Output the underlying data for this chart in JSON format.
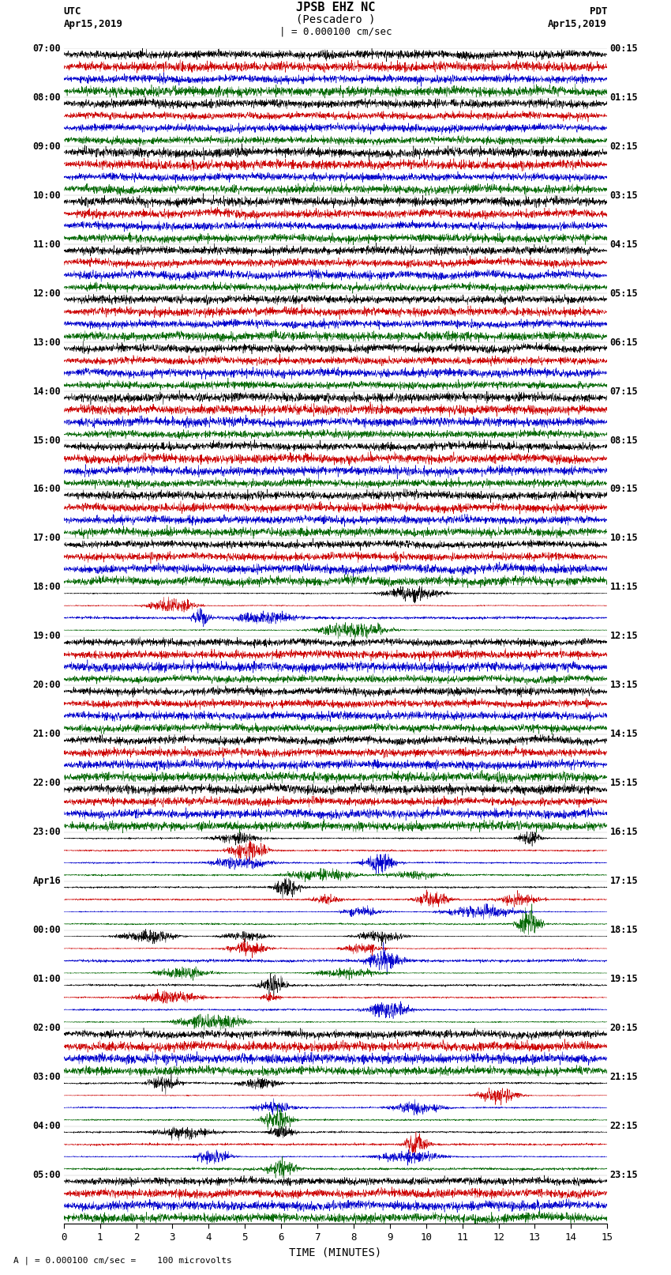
{
  "title_line1": "JPSB EHZ NC",
  "title_line2": "(Pescadero )",
  "scale_label": "| = 0.000100 cm/sec",
  "footer_label": "A | = 0.000100 cm/sec =    100 microvolts",
  "utc_label": "UTC",
  "utc_date": "Apr15,2019",
  "pdt_label": "PDT",
  "pdt_date": "Apr15,2019",
  "xlabel": "TIME (MINUTES)",
  "xlim": [
    0,
    15
  ],
  "xticks": [
    0,
    1,
    2,
    3,
    4,
    5,
    6,
    7,
    8,
    9,
    10,
    11,
    12,
    13,
    14,
    15
  ],
  "background_color": "#ffffff",
  "trace_colors": [
    "#000000",
    "#cc0000",
    "#0000cc",
    "#006600"
  ],
  "left_times": [
    "07:00",
    "",
    "",
    "",
    "08:00",
    "",
    "",
    "",
    "09:00",
    "",
    "",
    "",
    "10:00",
    "",
    "",
    "",
    "11:00",
    "",
    "",
    "",
    "12:00",
    "",
    "",
    "",
    "13:00",
    "",
    "",
    "",
    "14:00",
    "",
    "",
    "",
    "15:00",
    "",
    "",
    "",
    "16:00",
    "",
    "",
    "",
    "17:00",
    "",
    "",
    "",
    "18:00",
    "",
    "",
    "",
    "19:00",
    "",
    "",
    "",
    "20:00",
    "",
    "",
    "",
    "21:00",
    "",
    "",
    "",
    "22:00",
    "",
    "",
    "",
    "23:00",
    "",
    "",
    "",
    "Apr16",
    "",
    "",
    "",
    "00:00",
    "",
    "",
    "",
    "01:00",
    "",
    "",
    "",
    "02:00",
    "",
    "",
    "",
    "03:00",
    "",
    "",
    "",
    "04:00",
    "",
    "",
    "",
    "05:00",
    "",
    "",
    ""
  ],
  "right_times": [
    "00:15",
    "",
    "",
    "",
    "01:15",
    "",
    "",
    "",
    "02:15",
    "",
    "",
    "",
    "03:15",
    "",
    "",
    "",
    "04:15",
    "",
    "",
    "",
    "05:15",
    "",
    "",
    "",
    "06:15",
    "",
    "",
    "",
    "07:15",
    "",
    "",
    "",
    "08:15",
    "",
    "",
    "",
    "09:15",
    "",
    "",
    "",
    "10:15",
    "",
    "",
    "",
    "11:15",
    "",
    "",
    "",
    "12:15",
    "",
    "",
    "",
    "13:15",
    "",
    "",
    "",
    "14:15",
    "",
    "",
    "",
    "15:15",
    "",
    "",
    "",
    "16:15",
    "",
    "",
    "",
    "17:15",
    "",
    "",
    "",
    "18:15",
    "",
    "",
    "",
    "19:15",
    "",
    "",
    "",
    "20:15",
    "",
    "",
    "",
    "21:15",
    "",
    "",
    "",
    "22:15",
    "",
    "",
    "",
    "23:15",
    "",
    "",
    ""
  ],
  "n_traces": 96,
  "noise_seed": 12345
}
